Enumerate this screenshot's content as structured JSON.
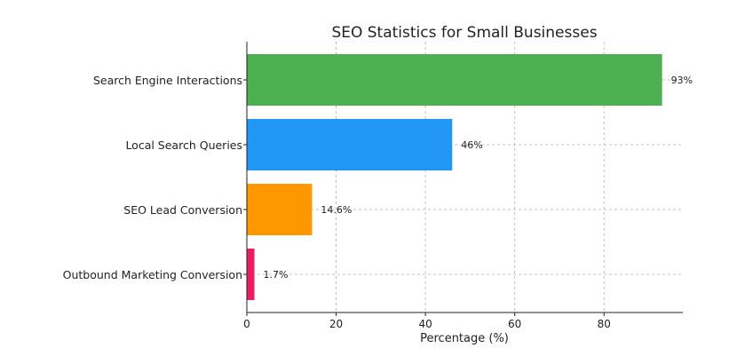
{
  "chart_data": {
    "type": "bar",
    "orientation": "horizontal",
    "title": "SEO Statistics for Small Businesses",
    "xlabel": "Percentage (%)",
    "ylabel": "",
    "categories": [
      "Search Engine Interactions",
      "Local Search Queries",
      "SEO Lead Conversion",
      "Outbound Marketing Conversion"
    ],
    "values": [
      93,
      46,
      14.6,
      1.7
    ],
    "value_labels": [
      "93%",
      "46%",
      "14.6%",
      "1.7%"
    ],
    "colors": [
      "#4caf50",
      "#2196f3",
      "#ff9800",
      "#e91e63"
    ],
    "xlim": [
      0,
      97.65
    ],
    "xticks": [
      0,
      20,
      40,
      60,
      80
    ],
    "xtick_labels": [
      "0",
      "20",
      "40",
      "60",
      "80"
    ],
    "grid": true,
    "legend": false
  }
}
